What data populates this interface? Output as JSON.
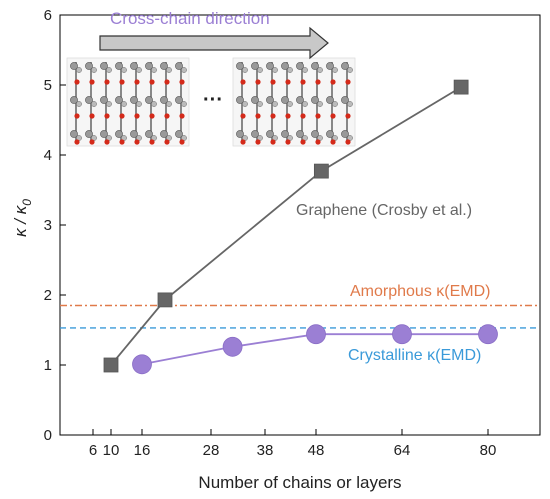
{
  "chart_data": {
    "type": "line",
    "xlabel": "Number of chains or layers",
    "ylabel_main": "κ / κ",
    "ylabel_sub": "0",
    "x_ticks": [
      6,
      10,
      16,
      28,
      38,
      48,
      64,
      80
    ],
    "x_tick_labels": [
      "6",
      "10",
      "16",
      "28",
      "38",
      "48",
      "64",
      "80"
    ],
    "y_ticks": [
      0,
      1,
      2,
      3,
      4,
      5,
      6
    ],
    "y_tick_labels": [
      "0",
      "1",
      "2",
      "3",
      "4",
      "5",
      "6"
    ],
    "ylim": [
      0,
      6
    ],
    "series": [
      {
        "name": "Graphene (Crosby et al.)",
        "marker": "square",
        "color": "#666666",
        "points": [
          {
            "x": 10,
            "y": 1.0
          },
          {
            "x": 20,
            "y": 1.93
          },
          {
            "x": 49,
            "y": 3.77
          },
          {
            "x": 75,
            "y": 4.97
          }
        ]
      },
      {
        "name": "",
        "marker": "circle",
        "color": "#9b7fd4",
        "points": [
          {
            "x": 16,
            "y": 1.01
          },
          {
            "x": 32,
            "y": 1.26
          },
          {
            "x": 48,
            "y": 1.44
          },
          {
            "x": 64,
            "y": 1.44
          },
          {
            "x": 80,
            "y": 1.44
          }
        ]
      }
    ],
    "reference_lines": [
      {
        "name": "Amorphous κ(EMD)",
        "y": 1.85,
        "color": "#e07a4a",
        "style": "dash-dot"
      },
      {
        "name": "Crystalline κ(EMD)",
        "y": 1.53,
        "color": "#3a9ad9",
        "style": "dashed"
      }
    ],
    "annotations": {
      "arrow_text": "Cross-chain direction",
      "arrow_text_color": "#9b7fd4",
      "graphene_label": "Graphene (Crosby et al.)",
      "graphene_label_color": "#666666",
      "amorphous_label": "Amorphous κ(EMD)",
      "amorphous_label_color": "#e07a4a",
      "crystalline_label": "Crystalline κ(EMD)",
      "crystalline_label_color": "#3a9ad9",
      "ellipsis": "···"
    }
  }
}
